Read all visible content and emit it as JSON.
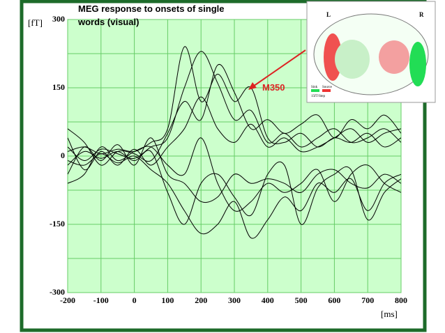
{
  "chart_data": {
    "type": "line",
    "title": [
      "MEG response to  onsets of single",
      "words (visual)"
    ],
    "ylabel": "[fT]",
    "xlabel": "[ms]",
    "x": [
      -200,
      -150,
      -100,
      -50,
      0,
      50,
      100,
      150,
      200,
      250,
      300,
      350,
      400,
      450,
      500,
      550,
      600,
      650,
      700,
      750,
      800
    ],
    "xlim": [
      -200,
      800
    ],
    "xticks": [
      -200,
      -100,
      0,
      100,
      200,
      300,
      400,
      500,
      600,
      700,
      800
    ],
    "ylim": [
      -300,
      300
    ],
    "yticks": [
      -300,
      -150,
      0,
      150,
      300
    ],
    "y_minor_ticks": [
      -225,
      -75,
      75,
      225
    ],
    "grid": true,
    "series": [
      {
        "color": "#000000",
        "values": [
          10,
          20,
          5,
          15,
          10,
          30,
          60,
          240,
          120,
          180,
          120,
          150,
          40,
          30,
          50,
          20,
          40,
          30,
          50,
          20,
          40
        ]
      },
      {
        "color": "#000000",
        "values": [
          20,
          -10,
          15,
          5,
          -5,
          20,
          40,
          150,
          230,
          160,
          80,
          100,
          30,
          50,
          20,
          40,
          60,
          30,
          40,
          60,
          30
        ]
      },
      {
        "color": "#000000",
        "values": [
          -10,
          -20,
          5,
          -15,
          0,
          -30,
          -60,
          -120,
          -170,
          -150,
          -100,
          -180,
          -140,
          -90,
          -120,
          -60,
          -80,
          -50,
          -120,
          -60,
          -40
        ]
      },
      {
        "color": "#000000",
        "values": [
          -20,
          10,
          -5,
          10,
          -10,
          10,
          -80,
          -150,
          -60,
          -40,
          -90,
          -130,
          -40,
          -20,
          -150,
          -70,
          -40,
          -30,
          -140,
          -80,
          -50
        ]
      },
      {
        "color": "#000000",
        "values": [
          40,
          -30,
          10,
          -20,
          15,
          -20,
          20,
          60,
          130,
          60,
          30,
          70,
          20,
          40,
          10,
          20,
          40,
          60,
          30,
          50,
          60
        ]
      },
      {
        "color": "#000000",
        "values": [
          -40,
          20,
          -10,
          25,
          -20,
          40,
          -40,
          -60,
          -100,
          -90,
          -40,
          -60,
          -50,
          -60,
          -80,
          -40,
          -30,
          -60,
          -70,
          -40,
          -60
        ]
      },
      {
        "color": "#000000",
        "values": [
          60,
          30,
          -20,
          10,
          5,
          -10,
          50,
          120,
          80,
          200,
          140,
          60,
          80,
          50,
          70,
          90,
          40,
          80,
          60,
          90,
          50
        ]
      },
      {
        "color": "#000000",
        "values": [
          -60,
          -40,
          20,
          -10,
          10,
          20,
          -20,
          -40,
          40,
          -60,
          -120,
          -100,
          -60,
          -80,
          -60,
          -30,
          -100,
          -40,
          -20,
          -60,
          -80
        ]
      }
    ],
    "annotation": {
      "text": "M350",
      "color": "#dd2222"
    },
    "inset": {
      "left_label": "L",
      "right_label": "R",
      "sink_label": "Sink",
      "source_label": "Source",
      "step_label": "15fT/Step"
    }
  }
}
